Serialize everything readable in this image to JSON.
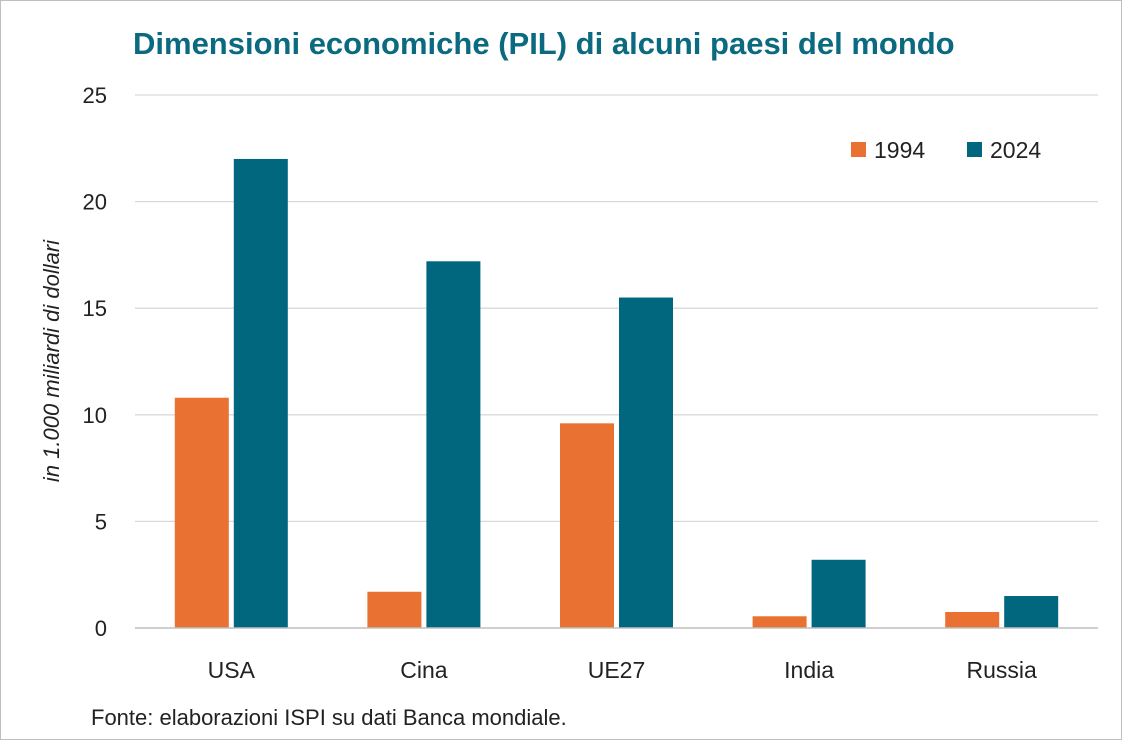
{
  "chart_data": {
    "type": "bar",
    "title": "Dimensioni economiche (PIL) di alcuni paesi del mondo",
    "ylabel": "in 1.000 miliardi di dollari",
    "xlabel": "",
    "categories": [
      "USA",
      "Cina",
      "UE27",
      "India",
      "Russia"
    ],
    "series": [
      {
        "name": "1994",
        "color": "#E97132",
        "values": [
          10.8,
          1.7,
          9.6,
          0.55,
          0.75
        ]
      },
      {
        "name": "2024",
        "color": "#00677F",
        "values": [
          22.0,
          17.2,
          15.5,
          3.2,
          1.5
        ]
      }
    ],
    "ylim": [
      0,
      25
    ],
    "yticks": [
      "0",
      "5",
      "10",
      "15",
      "20",
      "25"
    ],
    "grid": true,
    "legend": "top-right",
    "source": "Fonte: elaborazioni ISPI su dati Banca mondiale.",
    "title_color": "#0B6A80"
  }
}
